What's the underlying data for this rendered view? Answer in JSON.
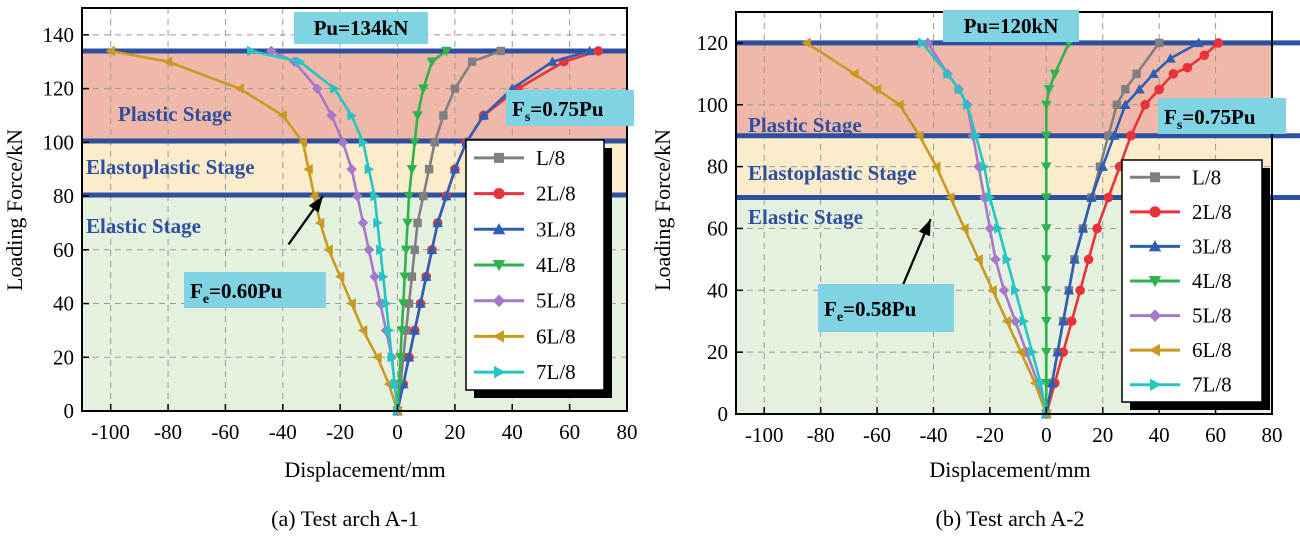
{
  "figure": {
    "caption_a": "(a) Test arch A-1",
    "caption_b": "(b) Test arch A-2"
  },
  "colors": {
    "L/8": "#808080",
    "2L/8": "#e8333a",
    "3L/8": "#2f5fb3",
    "4L/8": "#2fb34e",
    "5L/8": "#a678c9",
    "6L/8": "#c99a22",
    "7L/8": "#26c4c4",
    "band_line": "#2f4fa0",
    "plastic_fill": "#f0b8a8",
    "elastoplastic_fill": "#fbeccc",
    "elastic_fill": "#e4f1df",
    "box_fill": "#7fd3e3"
  },
  "chart_data": [
    {
      "type": "line",
      "id": "a",
      "xlabel": "Displacement/mm",
      "ylabel": "Loading Force/kN",
      "xlim": [
        -110,
        80
      ],
      "ylim": [
        0,
        150
      ],
      "xticks": [
        -100,
        -80,
        -60,
        -40,
        -20,
        0,
        20,
        40,
        60,
        80
      ],
      "xtick_labels": [
        "-100",
        "-80",
        "-60",
        "-40",
        "-20",
        "0",
        "20",
        "40",
        "60",
        "80"
      ],
      "yticks": [
        0,
        20,
        40,
        60,
        80,
        100,
        120,
        140
      ],
      "ytick_labels": [
        "0",
        "20",
        "40",
        "60",
        "80",
        "100",
        "120",
        "140"
      ],
      "grid": true,
      "legend_position": "right",
      "zones": [
        {
          "name": "elastic",
          "from": 0,
          "to": 80.4
        },
        {
          "name": "elastoplastic",
          "from": 80.4,
          "to": 100.5
        },
        {
          "name": "plastic",
          "from": 100.5,
          "to": 134
        }
      ],
      "hlines": [
        80.4,
        100.5,
        134
      ],
      "labels": {
        "pu": "Pu=134kN",
        "fs_main": "F",
        "fs_sub": "s",
        "fs_rest": "=0.75Pu",
        "fe_main": "F",
        "fe_sub": "e",
        "fe_rest": "=0.60Pu",
        "plastic": "Plastic  Stage",
        "elastoplastic": "Elastoplastic Stage",
        "elastic": "Elastic Stage"
      },
      "arrow": {
        "from": [
          -38,
          62
        ],
        "to": [
          -26,
          80
        ]
      },
      "series": [
        {
          "name": "L/8",
          "x": [
            0,
            1,
            2,
            3,
            4,
            5,
            6,
            7,
            9,
            11,
            13,
            16,
            20,
            26,
            36
          ],
          "y": [
            0,
            10,
            20,
            30,
            40,
            50,
            60,
            70,
            80,
            90,
            100,
            110,
            120,
            130,
            134
          ]
        },
        {
          "name": "2L/8",
          "x": [
            0,
            2,
            4,
            6,
            8,
            10,
            12,
            14,
            17,
            20,
            24,
            30,
            42,
            58,
            70
          ],
          "y": [
            0,
            10,
            20,
            30,
            40,
            50,
            60,
            70,
            80,
            90,
            100,
            110,
            120,
            130,
            134
          ]
        },
        {
          "name": "3L/8",
          "x": [
            0,
            2,
            4,
            6,
            8,
            10,
            12,
            14,
            17,
            20,
            24,
            30,
            40,
            54,
            67
          ],
          "y": [
            0,
            10,
            20,
            30,
            40,
            50,
            60,
            70,
            80,
            90,
            100,
            110,
            120,
            130,
            134
          ]
        },
        {
          "name": "4L/8",
          "x": [
            0,
            0.5,
            1,
            1.5,
            2,
            2.5,
            3,
            3.5,
            4,
            5,
            6,
            7,
            9,
            12,
            17
          ],
          "y": [
            0,
            10,
            20,
            30,
            40,
            50,
            60,
            70,
            80,
            90,
            100,
            110,
            120,
            130,
            134
          ]
        },
        {
          "name": "5L/8",
          "x": [
            0,
            -1,
            -2,
            -4,
            -6,
            -8,
            -10,
            -12,
            -14,
            -16,
            -19,
            -23,
            -28,
            -36,
            -44
          ],
          "y": [
            0,
            10,
            20,
            30,
            40,
            50,
            60,
            70,
            80,
            90,
            100,
            110,
            120,
            130,
            134
          ]
        },
        {
          "name": "6L/8",
          "x": [
            0,
            -3,
            -7,
            -12,
            -16,
            -20,
            -24,
            -27,
            -29,
            -31,
            -33,
            -40,
            -55,
            -80,
            -100
          ],
          "y": [
            0,
            10,
            20,
            30,
            40,
            50,
            60,
            70,
            80,
            90,
            100,
            110,
            120,
            130,
            134
          ]
        },
        {
          "name": "7L/8",
          "x": [
            0,
            -1,
            -2,
            -3,
            -4,
            -5,
            -6,
            -7,
            -8,
            -10,
            -12,
            -16,
            -22,
            -34,
            -51
          ],
          "y": [
            0,
            10,
            20,
            30,
            40,
            50,
            60,
            70,
            80,
            90,
            100,
            110,
            120,
            130,
            134
          ]
        }
      ]
    },
    {
      "type": "line",
      "id": "b",
      "xlabel": "Displacement/mm",
      "ylabel": "Loading Force/kN",
      "xlim": [
        -110,
        80
      ],
      "ylim": [
        0,
        130
      ],
      "xticks": [
        -100,
        -80,
        -60,
        -40,
        -20,
        0,
        20,
        40,
        60,
        80
      ],
      "xtick_labels": [
        "-100",
        "-80",
        "-60",
        "-40",
        "-20",
        "0",
        "20",
        "40",
        "60",
        "80"
      ],
      "yticks": [
        0,
        20,
        40,
        60,
        80,
        100,
        120
      ],
      "ytick_labels": [
        "0",
        "20",
        "40",
        "60",
        "80",
        "100",
        "120"
      ],
      "grid": true,
      "legend_position": "right",
      "zones": [
        {
          "name": "elastic",
          "from": 0,
          "to": 70
        },
        {
          "name": "elastoplastic",
          "from": 70,
          "to": 90
        },
        {
          "name": "plastic",
          "from": 90,
          "to": 120
        }
      ],
      "hlines": [
        70,
        90,
        120
      ],
      "labels": {
        "pu": "Pu=120kN",
        "fs_main": "F",
        "fs_sub": "s",
        "fs_rest": "=0.75Pu",
        "fe_main": "F",
        "fe_sub": "e",
        "fe_rest": "=0.58Pu",
        "plastic": "Plastic  Stage",
        "elastoplastic": "Elastoplastic Stage",
        "elastic": "Elastic Stage"
      },
      "arrow": {
        "from": [
          -53,
          37
        ],
        "to": [
          -41,
          63
        ]
      },
      "series": [
        {
          "name": "L/8",
          "x": [
            0,
            2,
            4,
            6,
            8,
            10,
            13,
            16,
            19,
            22,
            25,
            28,
            32,
            40
          ],
          "y": [
            0,
            10,
            20,
            30,
            40,
            50,
            60,
            70,
            80,
            90,
            100,
            105,
            110,
            120
          ]
        },
        {
          "name": "2L/8",
          "x": [
            0,
            3,
            6,
            9,
            12,
            15,
            18,
            22,
            26,
            30,
            35,
            40,
            45,
            50,
            56,
            61
          ],
          "y": [
            0,
            10,
            20,
            30,
            40,
            50,
            60,
            70,
            80,
            90,
            100,
            105,
            110,
            112,
            116,
            120
          ]
        },
        {
          "name": "3L/8",
          "x": [
            0,
            2,
            4,
            6,
            8,
            10,
            13,
            16,
            20,
            24,
            28,
            33,
            38,
            44,
            54
          ],
          "y": [
            0,
            10,
            20,
            30,
            40,
            50,
            60,
            70,
            80,
            90,
            100,
            105,
            110,
            115,
            120
          ]
        },
        {
          "name": "4L/8",
          "x": [
            0,
            0,
            0,
            0,
            0,
            0,
            0,
            0,
            0,
            0,
            0,
            1,
            3,
            8
          ],
          "y": [
            0,
            10,
            20,
            30,
            40,
            50,
            60,
            70,
            80,
            90,
            100,
            105,
            110,
            120
          ]
        },
        {
          "name": "5L/8",
          "x": [
            0,
            -3,
            -7,
            -11,
            -15,
            -18,
            -20,
            -22,
            -24,
            -26,
            -28,
            -31,
            -35,
            -42
          ],
          "y": [
            0,
            10,
            20,
            30,
            40,
            50,
            60,
            70,
            80,
            90,
            100,
            105,
            110,
            120
          ]
        },
        {
          "name": "6L/8",
          "x": [
            0,
            -4,
            -9,
            -14,
            -19,
            -24,
            -29,
            -34,
            -39,
            -45,
            -52,
            -60,
            -68,
            -85
          ],
          "y": [
            0,
            10,
            20,
            30,
            40,
            50,
            60,
            70,
            80,
            90,
            100,
            105,
            110,
            120
          ]
        },
        {
          "name": "7L/8",
          "x": [
            0,
            -2,
            -5,
            -8,
            -11,
            -14,
            -17,
            -20,
            -22,
            -25,
            -28,
            -31,
            -35,
            -44
          ],
          "y": [
            0,
            10,
            20,
            30,
            40,
            50,
            60,
            70,
            80,
            90,
            100,
            105,
            110,
            120
          ]
        }
      ]
    }
  ]
}
